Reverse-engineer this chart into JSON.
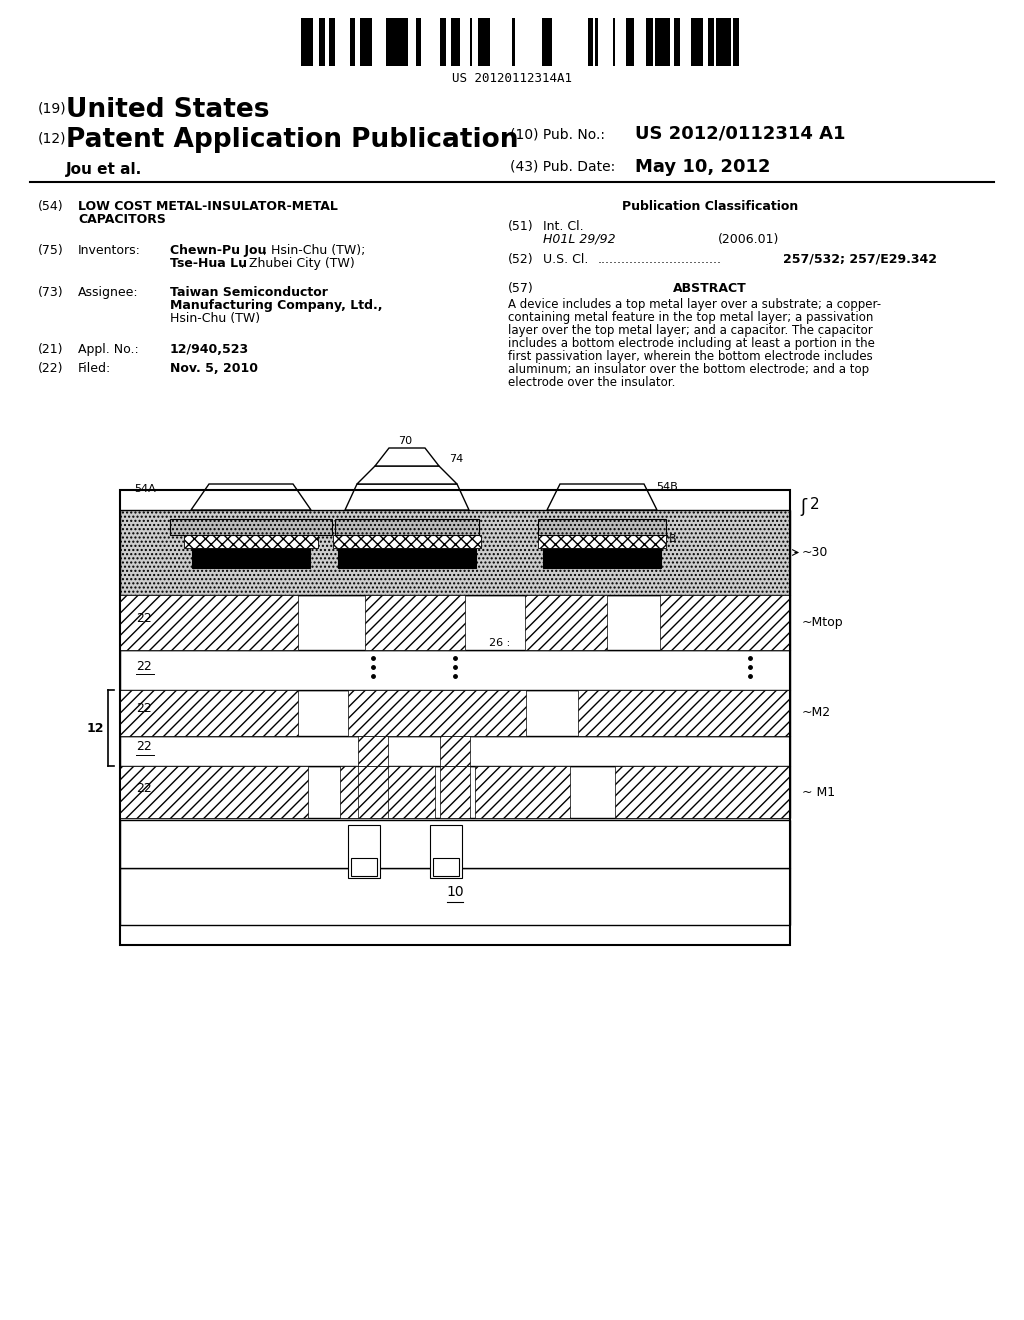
{
  "page_width": 10.24,
  "page_height": 13.2,
  "background": "#ffffff",
  "barcode_text": "US 20120112314A1",
  "title_19": "(19)",
  "title_country": "United States",
  "title_12": "(12)",
  "title_type": "Patent Application Publication",
  "title_author": "Jou et al.",
  "pub_no_label": "(10) Pub. No.:",
  "pub_no_value": "US 2012/0112314 A1",
  "pub_date_label": "(43) Pub. Date:",
  "pub_date_value": "May 10, 2012",
  "field_54_label": "(54)",
  "field_75_label": "(75)",
  "field_75_key": "Inventors:",
  "field_73_label": "(73)",
  "field_73_key": "Assignee:",
  "field_21_label": "(21)",
  "field_21_key": "Appl. No.:",
  "field_21_value": "12/940,523",
  "field_22_label": "(22)",
  "field_22_key": "Filed:",
  "field_22_value": "Nov. 5, 2010",
  "pub_class_title": "Publication Classification",
  "field_51_label": "(51)",
  "field_51_key": "Int. Cl.",
  "field_51_class": "H01L 29/92",
  "field_51_year": "(2006.01)",
  "field_52_label": "(52)",
  "field_52_key": "U.S. Cl.",
  "field_52_value": "257/532; 257/E29.342",
  "field_57_label": "(57)",
  "field_57_key": "ABSTRACT",
  "abstract_lines": [
    "A device includes a top metal layer over a substrate; a copper-",
    "containing metal feature in the top metal layer; a passivation",
    "layer over the top metal layer; and a capacitor. The capacitor",
    "includes a bottom electrode including at least a portion in the",
    "first passivation layer, wherein the bottom electrode includes",
    "aluminum; an insulator over the bottom electrode; and a top",
    "electrode over the insulator."
  ],
  "fig_number": "2",
  "FIG_L": 120,
  "FIG_R": 790,
  "FIG_T": 490,
  "FIG_B": 945
}
